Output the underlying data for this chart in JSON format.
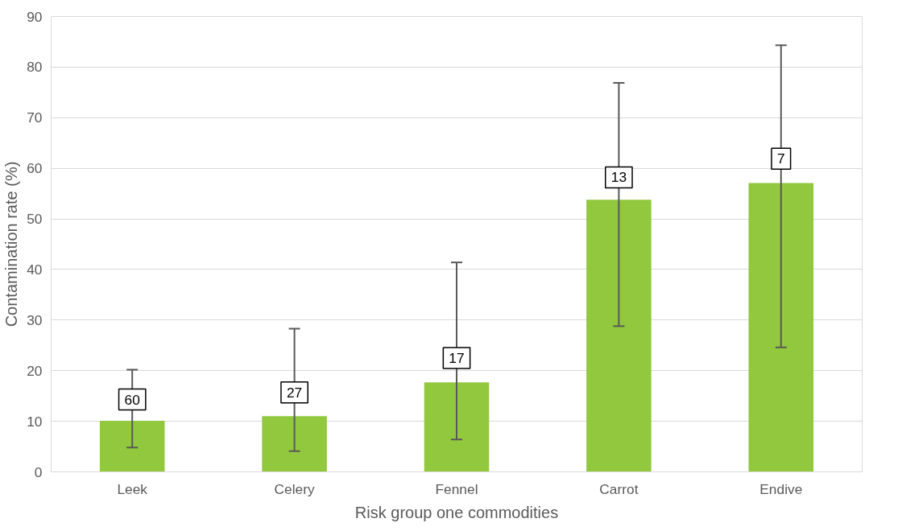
{
  "chart_data": {
    "type": "bar",
    "xlabel": "Risk group one commodities",
    "ylabel": "Contamination rate (%)",
    "categories": [
      "Leek",
      "Celery",
      "Fennel",
      "Carrot",
      "Endive"
    ],
    "values": [
      10.1,
      11.0,
      17.7,
      53.8,
      57.1
    ],
    "errors": [
      [
        4.8,
        20.2
      ],
      [
        4.1,
        28.3
      ],
      [
        6.4,
        41.4
      ],
      [
        28.8,
        76.9
      ],
      [
        24.6,
        84.3
      ]
    ],
    "annotations": [
      {
        "text": "60",
        "x": "Leek",
        "y": 14.3
      },
      {
        "text": "27",
        "x": "Celery",
        "y": 15.7
      },
      {
        "text": "17",
        "x": "Fennel",
        "y": 22.5
      },
      {
        "text": "13",
        "x": "Carrot",
        "y": 58.2
      },
      {
        "text": "7",
        "x": "Endive",
        "y": 61.9
      }
    ],
    "color": "#92c83e",
    "ylim": [
      0,
      90
    ],
    "yticks": [
      0,
      10,
      20,
      30,
      40,
      50,
      60,
      70,
      80,
      90
    ],
    "grid": "y"
  }
}
